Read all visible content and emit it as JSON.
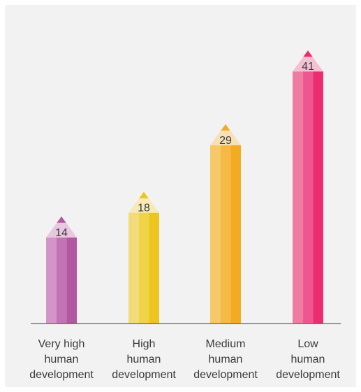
{
  "chart_data": {
    "type": "bar",
    "title": "",
    "xlabel": "",
    "ylabel": "",
    "categories": [
      [
        "Very high",
        "human",
        "development"
      ],
      [
        "High",
        "human",
        "development"
      ],
      [
        "Medium",
        "human",
        "development"
      ],
      [
        "Low",
        "human",
        "development"
      ]
    ],
    "values": [
      14,
      18,
      29,
      41
    ],
    "value_labels": [
      "14",
      "18",
      "29",
      "41"
    ],
    "ylim": [
      0,
      45
    ],
    "grid": false,
    "legend": "none",
    "style": "pencil",
    "colors": [
      {
        "light": "#d494c8",
        "mid": "#c273b6",
        "dark": "#b1589f",
        "tip": "#b1589f",
        "cone": "#e8c8e0"
      },
      {
        "light": "#f2dc7a",
        "mid": "#f0d447",
        "dark": "#ecc61f",
        "tip": "#ecc61f",
        "cone": "#f7eab5"
      },
      {
        "light": "#f5c86a",
        "mid": "#f5b944",
        "dark": "#f3ab22",
        "tip": "#f3ab22",
        "cone": "#f8e0b5"
      },
      {
        "light": "#ef7ba3",
        "mid": "#ef5590",
        "dark": "#ec2c6e",
        "tip": "#ec2c6e",
        "cone": "#f5c0d4"
      }
    ]
  }
}
